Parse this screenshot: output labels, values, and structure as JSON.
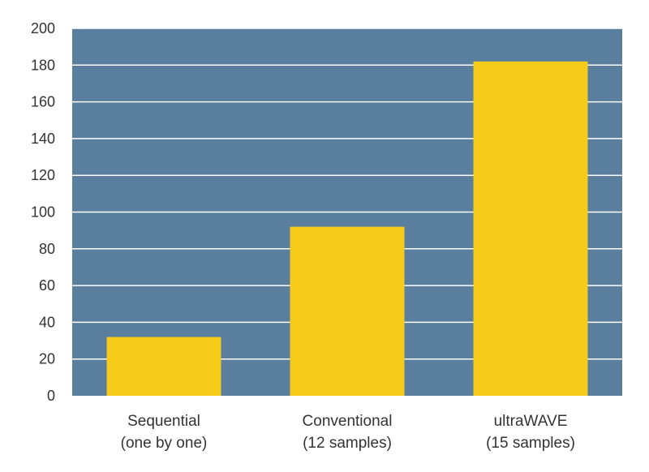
{
  "colors": {
    "plot_background": "#5a7e9e",
    "gridline": "#ffffff",
    "bar": "#f7cb1a",
    "text": "#333333",
    "page_background": "#ffffff"
  },
  "chart_data": {
    "type": "bar",
    "title": "",
    "xlabel": "",
    "ylabel": "",
    "categories": [
      [
        "Sequential",
        "(one by one)"
      ],
      [
        "Conventional",
        "(12 samples)"
      ],
      [
        "ultraWAVE",
        "(15 samples)"
      ]
    ],
    "values": [
      32,
      92,
      182
    ],
    "ylim": [
      0,
      200
    ],
    "yticks": [
      0,
      20,
      40,
      60,
      80,
      100,
      120,
      140,
      160,
      180,
      200
    ],
    "grid": true,
    "legend": "none"
  }
}
